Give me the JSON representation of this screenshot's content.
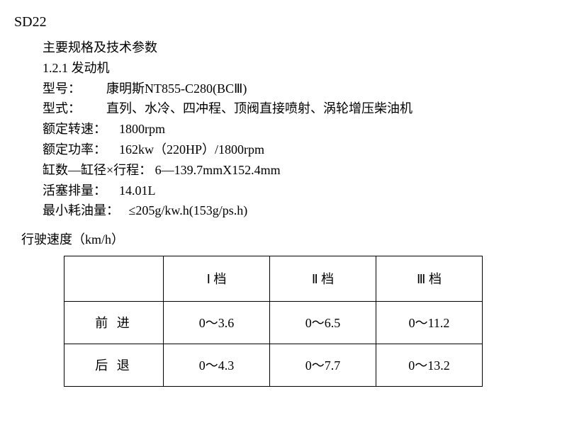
{
  "title": "SD22",
  "spec_header": "主要规格及技术参数",
  "spec_subheader": "1.2.1 发动机",
  "specs": {
    "model_label": "型号：",
    "model_value": "康明斯NT855-C280(BCⅢ)",
    "type_label": "型式：",
    "type_value": "直列、水冷、四冲程、顶阀直接喷射、涡轮增压柴油机",
    "rated_speed_label": "额定转速：",
    "rated_speed_value": "1800rpm",
    "rated_power_label": "额定功率：",
    "rated_power_value": "162kw（220HP）/1800rpm",
    "cylinder_label": "缸数—缸径×行程：",
    "cylinder_value": "6—139.7mmX152.4mm",
    "displacement_label": "活塞排量：",
    "displacement_value": "14.01L",
    "fuel_label": "最小耗油量：",
    "fuel_value": "≤205g/kw.h(153g/ps.h)"
  },
  "travel_speed_label": "行驶速度（km/h）",
  "table": {
    "columns": [
      "Ⅰ 档",
      "Ⅱ 档",
      "Ⅲ 档"
    ],
    "rows": [
      {
        "label": "前 进",
        "values": [
          "0～3.6",
          "0～6.5",
          "0～11.2"
        ]
      },
      {
        "label": "后 退",
        "values": [
          "0～4.3",
          "0～7.7",
          "0～13.2"
        ]
      }
    ]
  },
  "styling": {
    "background_color": "#ffffff",
    "text_color": "#000000",
    "border_color": "#000000",
    "font_family": "SimSun",
    "base_font_size": 18,
    "title_font_size": 20,
    "table_col_width": 150,
    "table_row_label_width": 140,
    "table_header_height": 64,
    "table_row_height": 60
  }
}
